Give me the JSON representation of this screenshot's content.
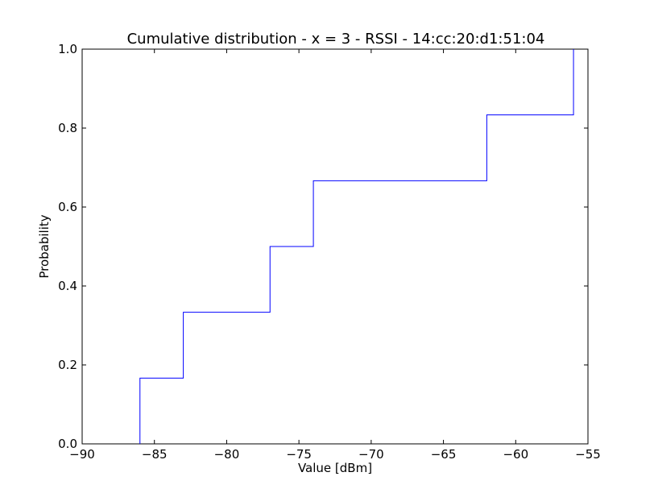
{
  "chart_data": {
    "type": "line",
    "drawstyle": "steps",
    "title": "Cumulative distribution - x = 3 - RSSI - 14:cc:20:d1:51:04",
    "xlabel": "Value [dBm]",
    "ylabel": "Probability",
    "xlim": [
      -90,
      -55
    ],
    "ylim": [
      0.0,
      1.0
    ],
    "xticks": [
      -90,
      -85,
      -80,
      -75,
      -70,
      -65,
      -60,
      -55
    ],
    "xtick_labels": [
      "−90",
      "−85",
      "−80",
      "−75",
      "−70",
      "−65",
      "−60",
      "−55"
    ],
    "yticks": [
      0.0,
      0.2,
      0.4,
      0.6,
      0.8,
      1.0
    ],
    "ytick_labels": [
      "0.0",
      "0.2",
      "0.4",
      "0.6",
      "0.8",
      "1.0"
    ],
    "grid": false,
    "line_color": "#0000ff",
    "series": [
      {
        "x": [
          -86,
          -83,
          -77,
          -74,
          -62,
          -56
        ],
        "y": [
          0.1667,
          0.3333,
          0.5,
          0.6667,
          0.8333,
          1.0
        ]
      }
    ]
  }
}
